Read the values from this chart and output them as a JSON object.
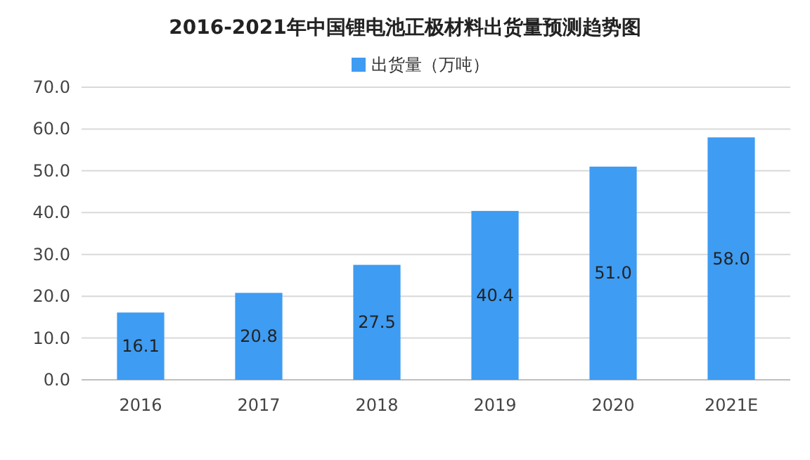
{
  "chart_data": {
    "type": "bar",
    "title": "2016-2021年中国锂电池正极材料出货量预测趋势图",
    "categories": [
      "2016",
      "2017",
      "2018",
      "2019",
      "2020",
      "2021E"
    ],
    "series": [
      {
        "name": "出货量（万吨）",
        "color": "#3e9cf2",
        "values": [
          16.1,
          20.8,
          27.5,
          40.4,
          51.0,
          58.0
        ],
        "value_labels": [
          "16.1",
          "20.8",
          "27.5",
          "40.4",
          "51.0",
          "58.0"
        ]
      }
    ],
    "ylim": [
      0,
      70
    ],
    "yticks": [
      {
        "value": 0,
        "label": "0.0"
      },
      {
        "value": 10,
        "label": "10.0"
      },
      {
        "value": 20,
        "label": "20.0"
      },
      {
        "value": 30,
        "label": "30.0"
      },
      {
        "value": 40,
        "label": "40.0"
      },
      {
        "value": 50,
        "label": "50.0"
      },
      {
        "value": 60,
        "label": "60.0"
      },
      {
        "value": 70,
        "label": "70.0"
      }
    ],
    "grid": "y",
    "legend": "top"
  }
}
